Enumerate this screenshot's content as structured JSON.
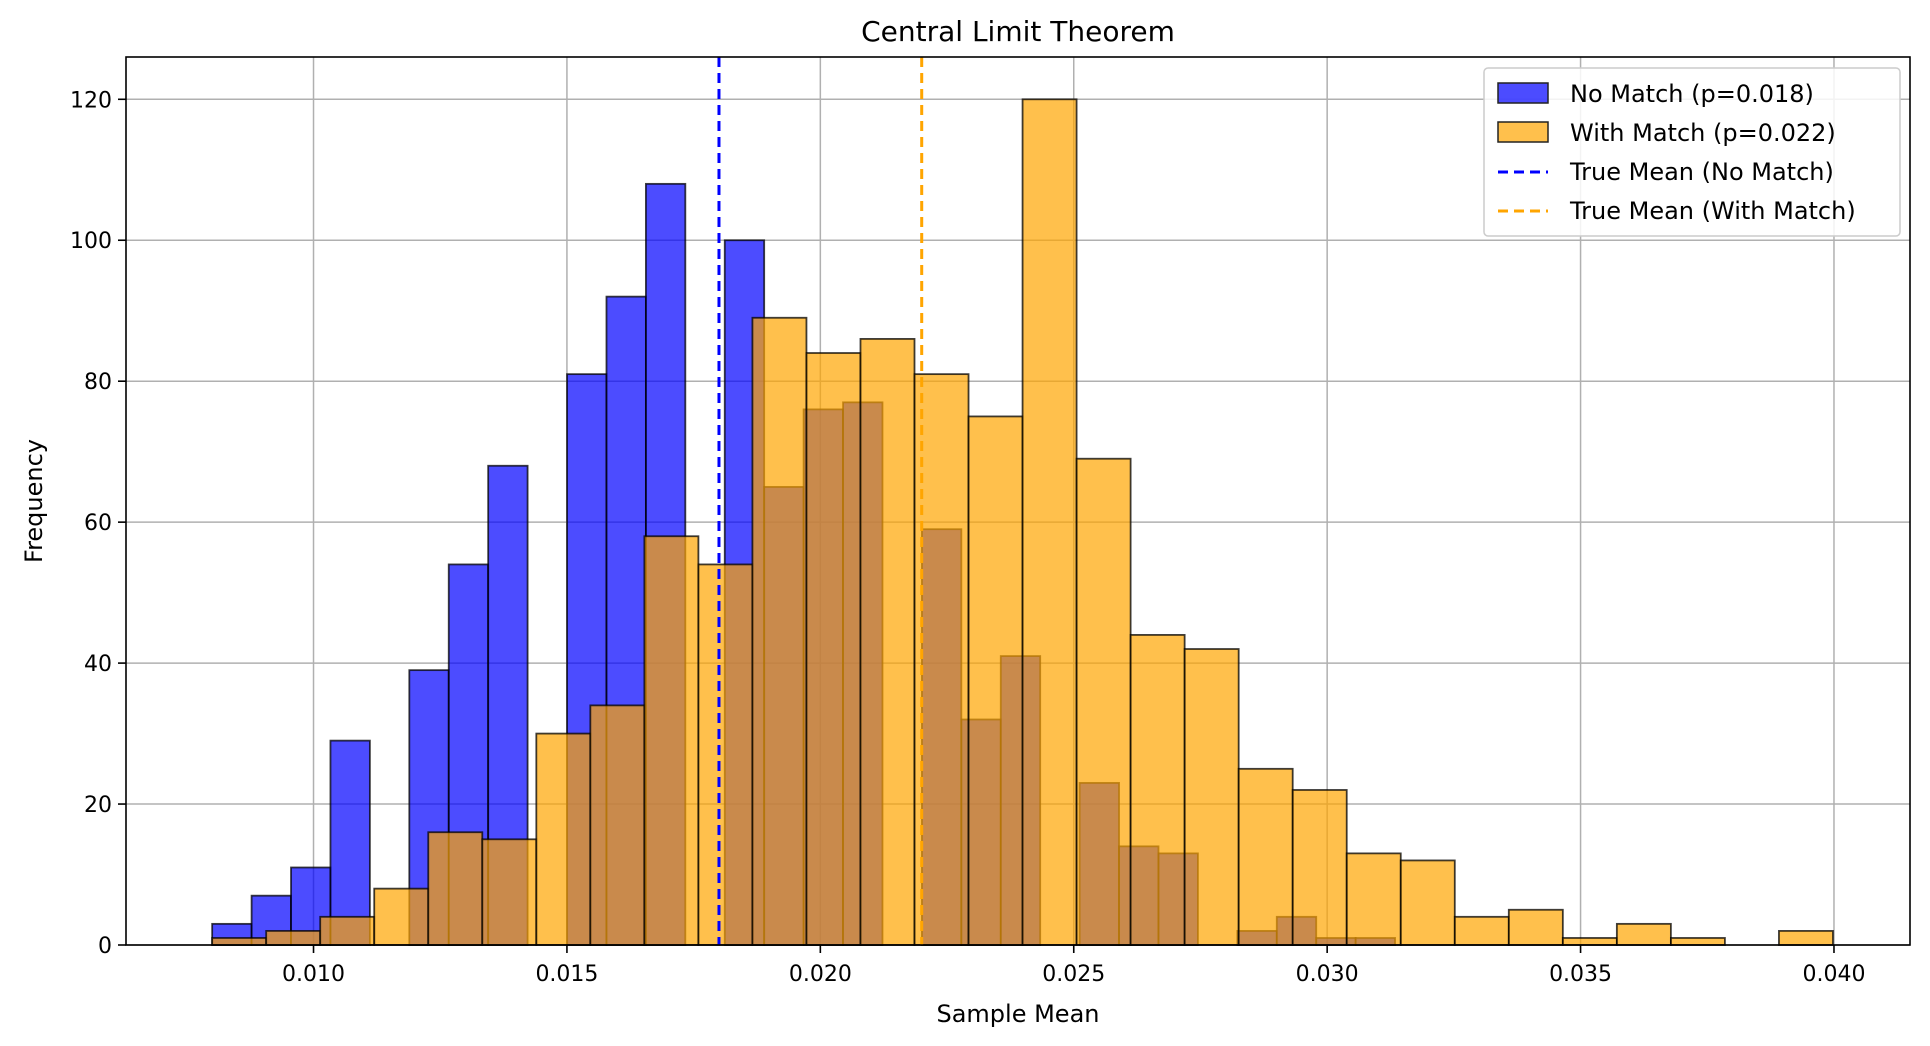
{
  "chart_data": {
    "type": "bar",
    "title": "Central Limit Theorem",
    "xlabel": "Sample Mean",
    "ylabel": "Frequency",
    "xlim": [
      0.0063,
      0.0415
    ],
    "ylim": [
      0,
      126
    ],
    "xticks": [
      0.01,
      0.015,
      0.02,
      0.025,
      0.03,
      0.035,
      0.04
    ],
    "xtick_labels": [
      "0.010",
      "0.015",
      "0.020",
      "0.025",
      "0.030",
      "0.035",
      "0.040"
    ],
    "yticks": [
      0,
      20,
      40,
      60,
      80,
      100,
      120
    ],
    "ytick_labels": [
      "0",
      "20",
      "40",
      "60",
      "80",
      "100",
      "120"
    ],
    "grid": true,
    "legend_position": "top-right",
    "series": [
      {
        "name": "No Match (p=0.018)",
        "color": "#0000ff",
        "opacity": 0.7,
        "bin_start": 0.008,
        "bin_width": 0.000778,
        "values": [
          3,
          7,
          11,
          29,
          0,
          39,
          54,
          68,
          0,
          81,
          92,
          108,
          0,
          100,
          65,
          76,
          77,
          0,
          59,
          32,
          41,
          0,
          23,
          14,
          13,
          0,
          2,
          4,
          1,
          1
        ]
      },
      {
        "name": "With Match (p=0.022)",
        "color": "#ffa500",
        "opacity": 0.7,
        "bin_start": 0.008,
        "bin_width": 0.001066,
        "values": [
          1,
          2,
          4,
          8,
          16,
          15,
          30,
          34,
          58,
          54,
          89,
          84,
          86,
          81,
          75,
          120,
          69,
          44,
          42,
          25,
          22,
          13,
          12,
          4,
          5,
          1,
          3,
          1,
          0,
          2
        ]
      }
    ],
    "vlines": [
      {
        "name": "True Mean (No Match)",
        "x": 0.018,
        "color": "#0000ff",
        "style": "dashed"
      },
      {
        "name": "True Mean (With Match)",
        "x": 0.022,
        "color": "#ffa500",
        "style": "dashed"
      }
    ]
  }
}
